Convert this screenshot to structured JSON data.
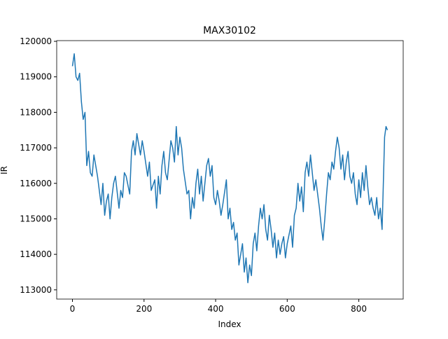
{
  "chart_data": {
    "type": "line",
    "title": "MAX30102",
    "x_label": "Index",
    "y_label": "IR",
    "x": [
      0,
      5,
      10,
      15,
      20,
      25,
      30,
      35,
      40,
      45,
      50,
      55,
      60,
      65,
      70,
      80,
      85,
      90,
      95,
      100,
      105,
      110,
      115,
      120,
      130,
      135,
      140,
      145,
      150,
      160,
      165,
      170,
      175,
      180,
      185,
      190,
      195,
      200,
      210,
      215,
      220,
      230,
      235,
      240,
      245,
      250,
      255,
      260,
      265,
      275,
      280,
      285,
      290,
      295,
      300,
      305,
      310,
      320,
      325,
      330,
      335,
      340,
      345,
      350,
      355,
      360,
      365,
      370,
      375,
      380,
      385,
      390,
      395,
      400,
      405,
      410,
      415,
      420,
      430,
      435,
      440,
      445,
      450,
      455,
      460,
      465,
      470,
      475,
      480,
      485,
      490,
      495,
      500,
      505,
      510,
      515,
      520,
      525,
      530,
      535,
      540,
      545,
      550,
      555,
      560,
      565,
      570,
      575,
      580,
      585,
      590,
      595,
      600,
      610,
      615,
      620,
      625,
      630,
      635,
      640,
      645,
      650,
      655,
      660,
      665,
      670,
      675,
      680,
      685,
      690,
      695,
      700,
      705,
      710,
      715,
      720,
      725,
      730,
      735,
      740,
      745,
      750,
      755,
      760,
      765,
      770,
      775,
      780,
      785,
      790,
      795,
      800,
      805,
      810,
      815,
      820,
      825,
      830,
      835,
      840,
      845,
      850,
      855,
      860,
      865,
      868,
      872,
      876,
      880
    ],
    "series": [
      {
        "name": "IR",
        "color": "#1f77b4",
        "values": [
          119300,
          119650,
          119000,
          118900,
          119100,
          118300,
          117800,
          118000,
          116500,
          116900,
          116300,
          116200,
          116800,
          116500,
          116200,
          115400,
          116000,
          115100,
          115500,
          115700,
          115000,
          115600,
          116000,
          116200,
          115300,
          115800,
          115600,
          116300,
          116200,
          115700,
          116900,
          117200,
          116800,
          117400,
          117100,
          116800,
          117200,
          116900,
          116200,
          116600,
          115800,
          116100,
          115300,
          116200,
          115700,
          116500,
          116900,
          116300,
          116100,
          117200,
          117000,
          116600,
          117600,
          116800,
          117300,
          117000,
          116400,
          115700,
          115800,
          115000,
          115600,
          115300,
          116000,
          116400,
          115700,
          116200,
          115500,
          116000,
          116500,
          116700,
          116200,
          116500,
          115600,
          115400,
          115800,
          115500,
          115100,
          115400,
          116100,
          115000,
          115300,
          114700,
          114900,
          114400,
          114600,
          113700,
          114000,
          114300,
          113500,
          113900,
          113200,
          113700,
          113400,
          114300,
          114600,
          114100,
          114800,
          115300,
          115000,
          115400,
          114700,
          114400,
          115100,
          114700,
          114200,
          114600,
          113900,
          114400,
          114000,
          114300,
          114500,
          113900,
          114300,
          114800,
          114200,
          115100,
          115300,
          116000,
          115500,
          115900,
          115200,
          116300,
          116600,
          116200,
          116800,
          116300,
          115800,
          116100,
          115700,
          115300,
          114800,
          114400,
          115000,
          115700,
          116300,
          116100,
          116600,
          116400,
          116900,
          117300,
          117000,
          116400,
          116800,
          116100,
          116600,
          116900,
          116200,
          116000,
          116300,
          115700,
          115400,
          116100,
          115600,
          116300,
          115800,
          116500,
          115900,
          115400,
          115600,
          115300,
          115100,
          115600,
          115000,
          115300,
          114700,
          115800,
          117300,
          117600,
          117500
        ]
      }
    ],
    "xlim": [
      -44,
      924
    ],
    "ylim": [
      112740,
      120020
    ],
    "xticks": [
      0,
      200,
      400,
      600,
      800
    ],
    "yticks": [
      113000,
      114000,
      115000,
      116000,
      117000,
      118000,
      119000,
      120000
    ]
  }
}
